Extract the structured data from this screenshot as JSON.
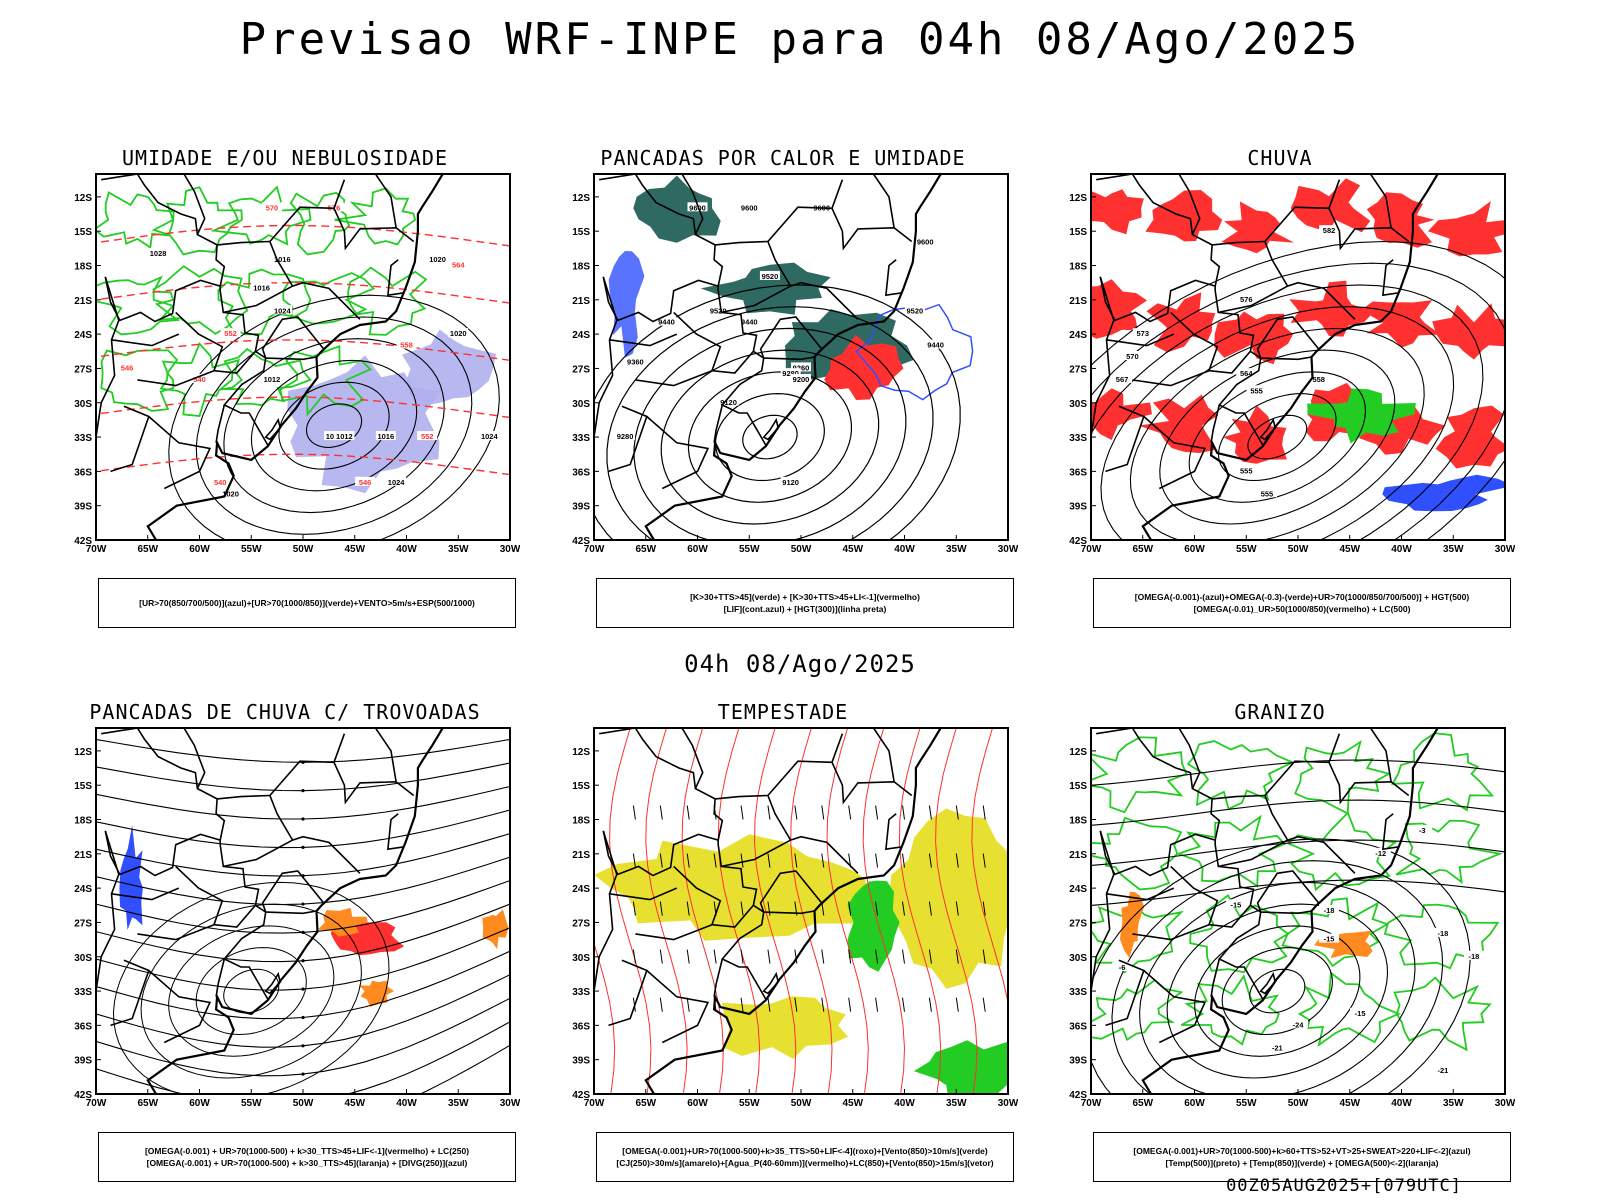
{
  "title": "Previsao WRF-INPE  para 04h 08/Ago/2025",
  "subtitle": "04h 08/Ago/2025",
  "run_info": "00Z05AUG2025+[079UTC]",
  "axes": {
    "lat_labels": [
      "12S",
      "15S",
      "18S",
      "21S",
      "24S",
      "27S",
      "30S",
      "33S",
      "36S",
      "39S",
      "42S"
    ],
    "lon_labels": [
      "70W",
      "65W",
      "60W",
      "55W",
      "50W",
      "45W",
      "40W",
      "35W",
      "30W"
    ]
  },
  "colors": {
    "blue": "#3050ff",
    "green": "#22cc22",
    "red": "#ff3030",
    "orange": "#ff8a20",
    "teal": "#2f6a62",
    "yellow": "#e8e030",
    "lavender": "#b0b0f0"
  },
  "panels": [
    {
      "id": "umidade",
      "title": "UMIDADE E/OU NEBULOSIDADE",
      "legend": [
        "[UR>70(850/700/500)](azul)+[UR>70(1000/850)](verde)+VENTO>5m/s+ESP(500/1000)"
      ],
      "contour_labels": [
        "1028",
        "1016",
        "1016",
        "1020",
        "1020",
        "1012",
        "1024",
        "1020",
        "1012",
        "1016",
        "1024",
        "1020",
        "1024"
      ],
      "thickness_labels": [
        "570",
        "576",
        "558",
        "564",
        "552",
        "546",
        "540",
        "552",
        "546",
        "540"
      ]
    },
    {
      "id": "pancadas_calor",
      "title": "PANCADAS POR CALOR E UMIDADE",
      "legend": [
        "[K>30+TTS>45](verde) + [K>30+TTS>45+LI<-1](vermelho)",
        "[LIF](cont.azul) + [HGT(300)](linha preta)"
      ],
      "contour_labels": [
        "9600",
        "9600",
        "9600",
        "9600",
        "9520",
        "9520",
        "9520",
        "9440",
        "9440",
        "9440",
        "9360",
        "9360",
        "9280",
        "9280",
        "9200",
        "9120",
        "9120"
      ]
    },
    {
      "id": "chuva",
      "title": "CHUVA",
      "legend": [
        "[OMEGA(-0.001)-(azul)+OMEGA(-0.3)-(verde)+UR>70(1000/850/700/500)] + HGT(500)",
        "[OMEGA(-0.01)_UR>50(1000/850)(vermelho) + LC(500)"
      ],
      "contour_labels": [
        "582",
        "576",
        "573",
        "570",
        "567",
        "564",
        "558",
        "555",
        "555",
        "555"
      ]
    },
    {
      "id": "pancadas_trovoadas",
      "title": "PANCADAS DE CHUVA C/ TROVOADAS",
      "legend": [
        "[OMEGA(-0.001) + UR>70(1000-500) + k>30_TTS>45+LIF<-1](vermelho) + LC(250)",
        "[OMEGA(-0.001) + UR>70(1000-500) + k>30_TTS>45](laranja) + [DIVG(250)](azul)"
      ]
    },
    {
      "id": "tempestade",
      "title": "TEMPESTADE",
      "legend": [
        "[OMEGA(-0.001)+UR>70(1000-500)+k>35_TTS>50+LIF<-4](roxo)+[Vento(850)>10m/s](verde)",
        "[CJ(250)>30m/s](amarelo)+[Agua_P(40-60mm)](vermelho)+LC(850)+[Vento(850)>15m/s](vetor)"
      ]
    },
    {
      "id": "granizo",
      "title": "GRANIZO",
      "legend": [
        "[OMEGA(-0.001)+UR>70(1000-500)+k>60+TTS>52+VT>25+SWEAT>220+LIF<-2](azul)",
        "[Temp(500)](preto) + [Temp(850)](verde) + [OMEGA(500)<-2](laranja)"
      ],
      "contour_labels": [
        "-3",
        "-12",
        "-15",
        "-18",
        "-15",
        "-6",
        "-18",
        "-24",
        "-21",
        "-21",
        "-15",
        "-18"
      ]
    }
  ]
}
